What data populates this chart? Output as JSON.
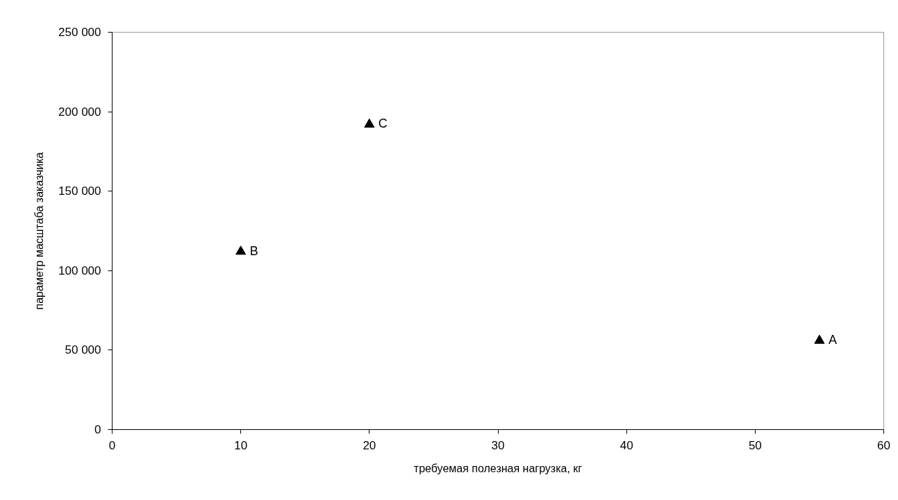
{
  "chart_data": {
    "type": "scatter",
    "xlabel": "требуемая полезная нагрузка, кг",
    "ylabel": "параметр масштаба заказчика",
    "x": [
      55,
      10,
      20
    ],
    "series": [
      {
        "color": "#000000",
        "values": [
          56000,
          112000,
          192000
        ]
      }
    ],
    "marker": "triangle",
    "grid": false,
    "xlim": [
      0,
      60
    ],
    "xticks": [
      0,
      10,
      20,
      30,
      40,
      50,
      60
    ],
    "ylim": [
      0,
      250000
    ],
    "yticks": [
      0,
      {
        "value": 50000,
        "label": "50 000"
      },
      {
        "value": 100000,
        "label": "100 000"
      },
      {
        "value": 150000,
        "label": "150 000"
      },
      {
        "value": 200000,
        "label": "200 000"
      },
      {
        "value": 250000,
        "label": "250 000"
      }
    ],
    "annotations": [
      {
        "text": "A",
        "x": 55,
        "y": 56000
      },
      {
        "text": "B",
        "x": 10,
        "y": 112000
      },
      {
        "text": "C",
        "x": 20,
        "y": 192000
      }
    ]
  }
}
